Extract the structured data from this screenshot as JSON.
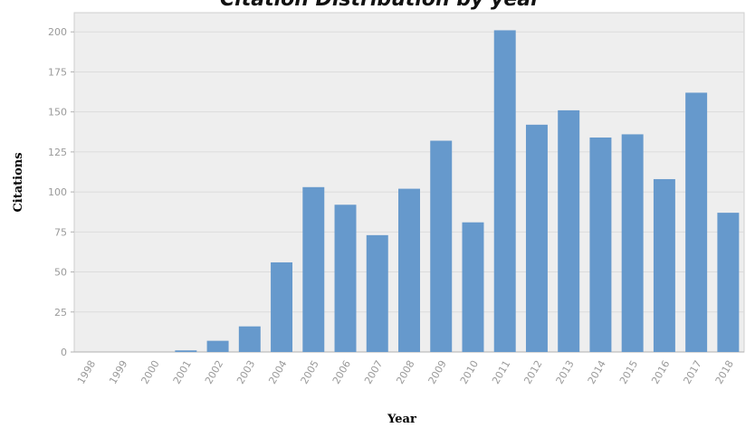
{
  "chart_data": {
    "type": "bar",
    "title": "Citation Distribution by year",
    "xlabel": "Year",
    "ylabel": "Citations",
    "categories": [
      "1998",
      "1999",
      "2000",
      "2001",
      "2002",
      "2003",
      "2004",
      "2005",
      "2006",
      "2007",
      "2008",
      "2009",
      "2010",
      "2011",
      "2012",
      "2013",
      "2014",
      "2015",
      "2016",
      "2017",
      "2018"
    ],
    "values": [
      0,
      0,
      0,
      1,
      7,
      16,
      56,
      103,
      92,
      73,
      102,
      132,
      81,
      201,
      142,
      151,
      134,
      136,
      108,
      162,
      87
    ],
    "ylim": [
      0,
      212
    ],
    "yticks": [
      0,
      25,
      50,
      75,
      100,
      125,
      150,
      175,
      200
    ],
    "grid": true,
    "legend": "none",
    "bar_color": "#6699cc",
    "plot_background": "#eeeeee",
    "grid_color": "#dcdcdc"
  }
}
